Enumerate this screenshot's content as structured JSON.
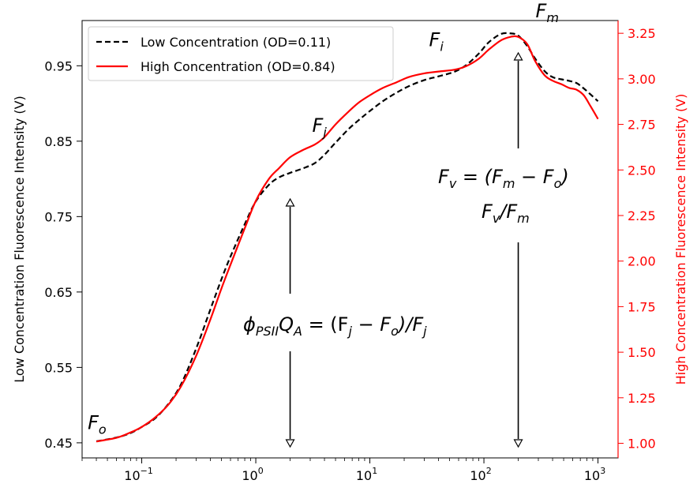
{
  "chart_data": {
    "type": "line",
    "xscale": "log",
    "xlim": [
      0.03,
      1500
    ],
    "xticks": [
      {
        "value": 0.1,
        "base": "10",
        "exp": "−1"
      },
      {
        "value": 1,
        "base": "10",
        "exp": "0"
      },
      {
        "value": 10,
        "base": "10",
        "exp": "1"
      },
      {
        "value": 100,
        "base": "10",
        "exp": "2"
      },
      {
        "value": 1000,
        "base": "10",
        "exp": "3"
      }
    ],
    "ylabel_left": "Low Concentration Fluorescence Intensity (V)",
    "ylabel_right": "High Concentration Fluorescence Intensity (V)",
    "ylim_left": [
      0.43,
      1.01
    ],
    "ylim_right": [
      0.92,
      3.32
    ],
    "yticks_left": [
      "0.45",
      "0.55",
      "0.65",
      "0.75",
      "0.85",
      "0.95"
    ],
    "yticks_right": [
      "1.00",
      "1.25",
      "1.50",
      "1.75",
      "2.00",
      "2.25",
      "2.50",
      "2.75",
      "3.00",
      "3.25"
    ],
    "legend_position": "upper-left",
    "colors": {
      "low": "#000000",
      "high": "#ff0000"
    },
    "series": [
      {
        "name": "Low Concentration (OD=0.11)",
        "axis": "left",
        "style": "dashed",
        "x": [
          0.04,
          0.06,
          0.08,
          0.1,
          0.13,
          0.17,
          0.22,
          0.3,
          0.4,
          0.5,
          0.6,
          0.8,
          1.0,
          1.3,
          1.6,
          2.0,
          2.6,
          3.3,
          4.0,
          5.0,
          6.5,
          8.0,
          10,
          13,
          17,
          22,
          30,
          40,
          55,
          70,
          90,
          110,
          140,
          170,
          200,
          240,
          280,
          340,
          400,
          480,
          560,
          650,
          750,
          860,
          1000
        ],
        "y": [
          0.452,
          0.457,
          0.463,
          0.471,
          0.482,
          0.501,
          0.527,
          0.575,
          0.627,
          0.667,
          0.697,
          0.74,
          0.77,
          0.792,
          0.802,
          0.808,
          0.814,
          0.821,
          0.832,
          0.848,
          0.866,
          0.878,
          0.89,
          0.903,
          0.914,
          0.923,
          0.931,
          0.936,
          0.942,
          0.951,
          0.966,
          0.981,
          0.992,
          0.993,
          0.99,
          0.976,
          0.96,
          0.943,
          0.935,
          0.932,
          0.93,
          0.927,
          0.92,
          0.912,
          0.903
        ]
      },
      {
        "name": "High Concentration (OD=0.84)",
        "axis": "right",
        "style": "solid",
        "x": [
          0.04,
          0.06,
          0.08,
          0.1,
          0.13,
          0.17,
          0.22,
          0.3,
          0.4,
          0.5,
          0.6,
          0.8,
          1.0,
          1.3,
          1.6,
          2.0,
          2.6,
          3.3,
          4.0,
          5.0,
          6.5,
          8.0,
          10,
          13,
          17,
          22,
          30,
          40,
          55,
          70,
          90,
          110,
          140,
          170,
          200,
          240,
          280,
          340,
          400,
          480,
          560,
          650,
          750,
          860,
          1000
        ],
        "y": [
          1.01,
          1.03,
          1.06,
          1.09,
          1.14,
          1.21,
          1.31,
          1.48,
          1.68,
          1.85,
          1.98,
          2.18,
          2.33,
          2.45,
          2.51,
          2.57,
          2.61,
          2.64,
          2.68,
          2.75,
          2.82,
          2.87,
          2.91,
          2.95,
          2.98,
          3.01,
          3.03,
          3.04,
          3.05,
          3.07,
          3.11,
          3.16,
          3.21,
          3.23,
          3.23,
          3.19,
          3.1,
          3.02,
          2.99,
          2.97,
          2.95,
          2.94,
          2.91,
          2.85,
          2.78
        ]
      }
    ],
    "annotations": [
      {
        "id": "fo",
        "label": "F",
        "sub": "o",
        "x": 0.042,
        "y_left": 0.458
      },
      {
        "id": "fj",
        "label": "F",
        "sub": "j",
        "x": 2.0,
        "y_left": 0.808
      },
      {
        "id": "fi",
        "label": "F",
        "sub": "i",
        "x": 40,
        "y_left": 0.936
      },
      {
        "id": "fm",
        "label": "F",
        "sub": "m",
        "x": 200,
        "y_left": 0.993
      }
    ],
    "equations": {
      "phi_text": "ϕ",
      "phi_sub": "PSII",
      "phi_rest": "Q",
      "phi_sub2": "A",
      "phi_eq": " = (F",
      "phi_s1": "j",
      "phi_m": " − F",
      "phi_s2": "o",
      "phi_end": ")/F",
      "phi_s3": "j",
      "fv_1": "F",
      "fv_s1": "v",
      "fv_2": " = (F",
      "fv_s2": "m",
      "fv_3": " − F",
      "fv_s3": "o",
      "fv_4": ")",
      "fvfm_1": "F",
      "fvfm_s1": "v",
      "fvfm_2": "/F",
      "fvfm_s2": "m"
    }
  }
}
